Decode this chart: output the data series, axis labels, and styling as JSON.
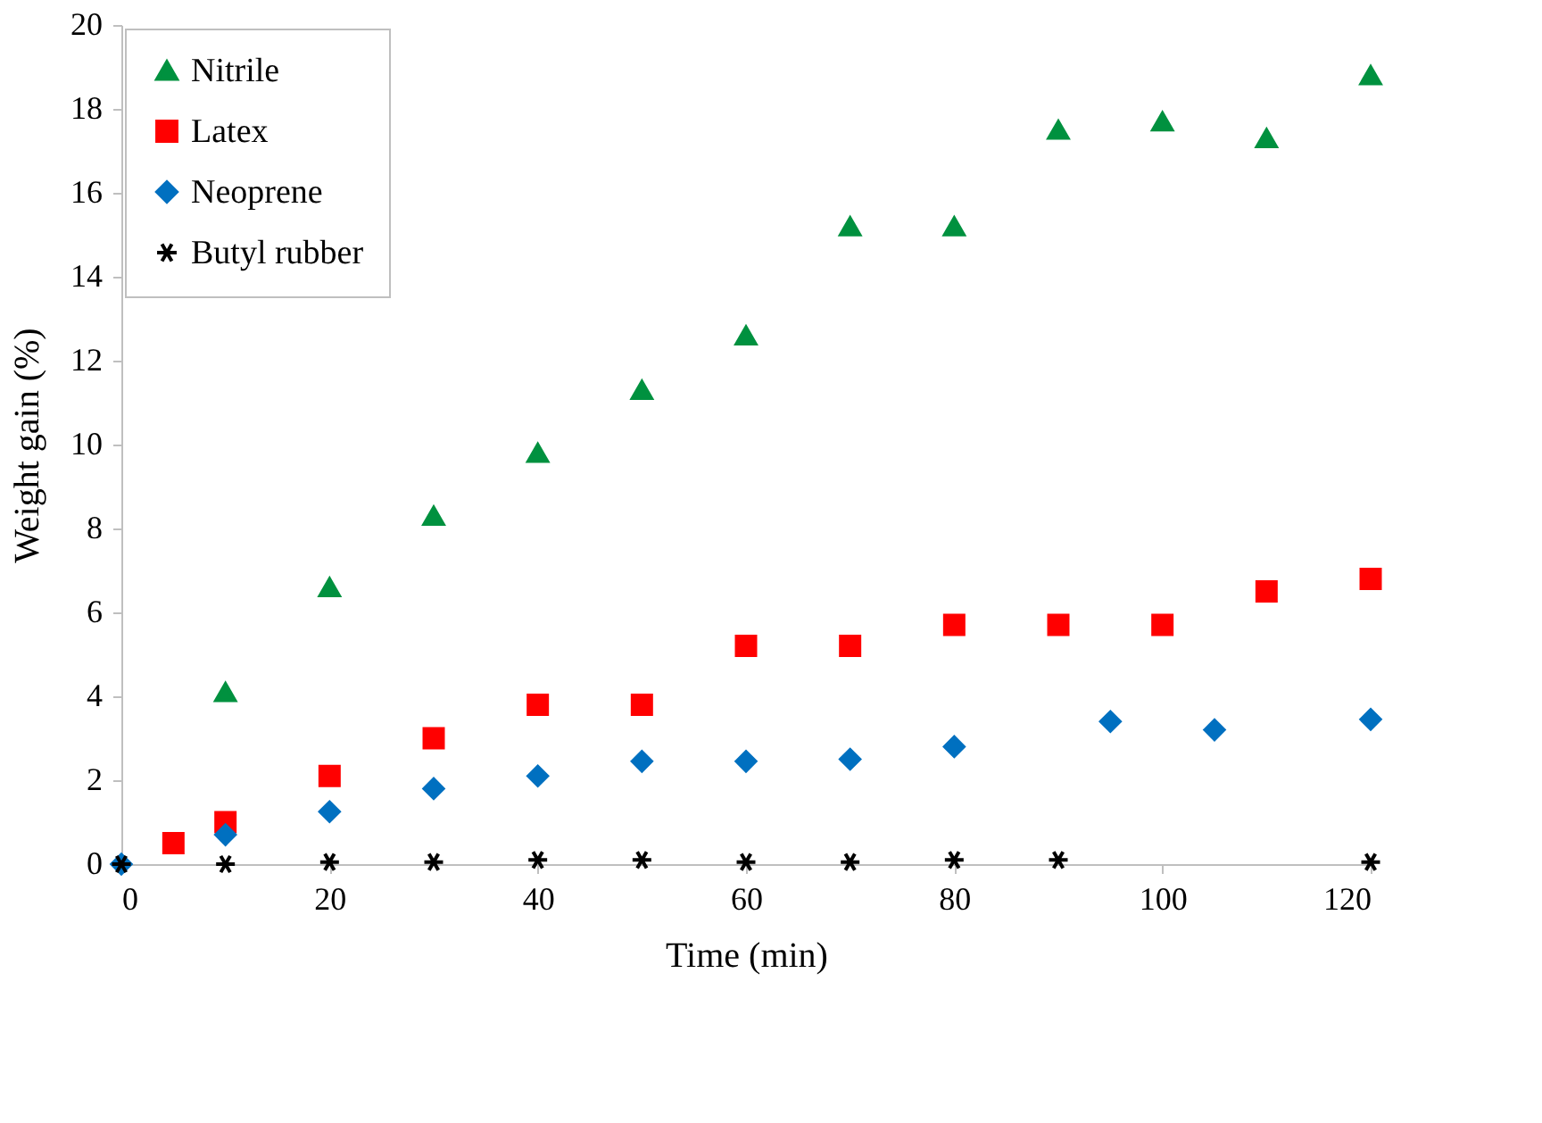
{
  "chart_data": {
    "type": "scatter",
    "xlabel": "Time (min)",
    "ylabel": "Weight gain (%)",
    "xlim": [
      0,
      120
    ],
    "xticks": [
      0,
      20,
      40,
      60,
      80,
      100,
      120
    ],
    "ylim": [
      0,
      20
    ],
    "yticks": [
      0,
      2,
      4,
      6,
      8,
      10,
      12,
      14,
      16,
      18,
      20
    ],
    "grid": false,
    "legend": "top left",
    "series": [
      {
        "name": "Nitrile",
        "color": "#00913f",
        "marker": "triangle",
        "x": [
          10,
          20,
          30,
          40,
          50,
          60,
          70,
          80,
          90,
          100,
          110,
          120
        ],
        "values": [
          4.1,
          6.6,
          8.3,
          9.8,
          11.3,
          12.6,
          15.2,
          15.2,
          17.5,
          17.7,
          17.3,
          18.8
        ]
      },
      {
        "name": "Latex",
        "color": "#ff0000",
        "marker": "square",
        "x": [
          5,
          10,
          20,
          30,
          40,
          50,
          60,
          70,
          80,
          90,
          100,
          110,
          120
        ],
        "values": [
          0.5,
          1.0,
          2.1,
          3.0,
          3.8,
          3.8,
          5.2,
          5.2,
          5.7,
          5.7,
          5.7,
          6.5,
          6.8
        ]
      },
      {
        "name": "Neoprene",
        "color": "#0070c0",
        "marker": "diamond",
        "x": [
          0,
          10,
          20,
          30,
          40,
          50,
          60,
          70,
          80,
          95,
          105,
          120
        ],
        "values": [
          0,
          0.7,
          1.25,
          1.8,
          2.1,
          2.45,
          2.45,
          2.5,
          2.8,
          3.4,
          3.2,
          3.45
        ]
      },
      {
        "name": "Butyl rubber",
        "color": "#000000",
        "marker": "cross",
        "x": [
          0,
          10,
          20,
          30,
          40,
          50,
          60,
          70,
          80,
          90,
          120
        ],
        "values": [
          0,
          0,
          0.05,
          0.05,
          0.1,
          0.1,
          0.05,
          0.05,
          0.1,
          0.1,
          0.05
        ]
      }
    ]
  }
}
